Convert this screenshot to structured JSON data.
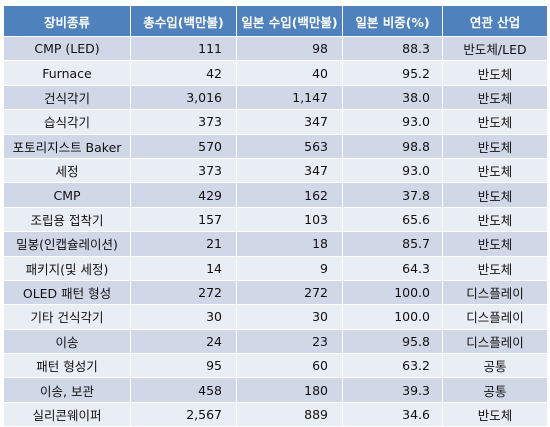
{
  "table": {
    "headers": [
      "장비종류",
      "총수입(백만불)",
      "일본 수입(백만불)",
      "일본 비중(%)",
      "연관 산업"
    ],
    "rows": [
      [
        "CMP (LED)",
        "111",
        "98",
        "88.3",
        "반도체/LED"
      ],
      [
        "Furnace",
        "42",
        "40",
        "95.2",
        "반도체"
      ],
      [
        "건식각기",
        "3,016",
        "1,147",
        "38.0",
        "반도체"
      ],
      [
        "습식각기",
        "373",
        "347",
        "93.0",
        "반도체"
      ],
      [
        "포토리지스트 Baker",
        "570",
        "563",
        "98.8",
        "반도체"
      ],
      [
        "세정",
        "373",
        "347",
        "93.0",
        "반도체"
      ],
      [
        "CMP",
        "429",
        "162",
        "37.8",
        "반도체"
      ],
      [
        "조립용 접착기",
        "157",
        "103",
        "65.6",
        "반도체"
      ],
      [
        "밀봉(인캡슐레이션)",
        "21",
        "18",
        "85.7",
        "반도체"
      ],
      [
        "패키지(및 세정)",
        "14",
        "9",
        "64.3",
        "반도체"
      ],
      [
        "OLED 패턴 형성",
        "272",
        "272",
        "100.0",
        "디스플레이"
      ],
      [
        "기타 건식각기",
        "30",
        "30",
        "100.0",
        "디스플레이"
      ],
      [
        "이송",
        "24",
        "23",
        "95.8",
        "디스플레이"
      ],
      [
        "패턴 형성기",
        "95",
        "60",
        "63.2",
        "공통"
      ],
      [
        "이송, 보관",
        "458",
        "180",
        "39.3",
        "공통"
      ],
      [
        "실리콘웨이퍼",
        "2,567",
        "889",
        "34.6",
        "반도체"
      ]
    ]
  },
  "colors": {
    "header_bg": "#4f81bd",
    "header_text": "#ffffff",
    "row_odd": "#d0d8e8",
    "row_even": "#e9edf4"
  }
}
